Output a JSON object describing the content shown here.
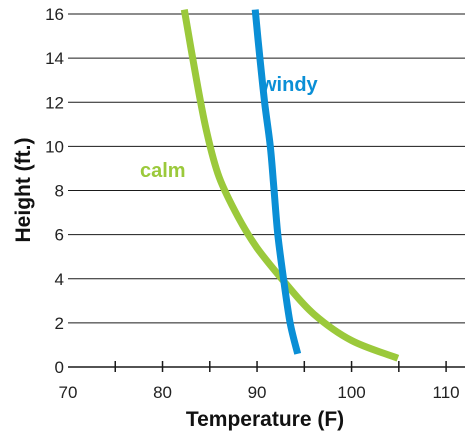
{
  "chart_data": {
    "type": "line",
    "xlabel": "Temperature (F)",
    "ylabel": "Height (ft.)",
    "xlim": [
      70,
      112
    ],
    "ylim": [
      0,
      16
    ],
    "x_ticks": [
      70,
      80,
      90,
      100,
      110
    ],
    "y_ticks": [
      0,
      2,
      4,
      6,
      8,
      10,
      12,
      14,
      16
    ],
    "grid": "horizontal",
    "series": [
      {
        "name": "windy",
        "color": "#0a8fd6",
        "points": [
          [
            94.3,
            0.6
          ],
          [
            93.5,
            2
          ],
          [
            92.8,
            4
          ],
          [
            92.2,
            6
          ],
          [
            91.8,
            8
          ],
          [
            91.4,
            10
          ],
          [
            90.8,
            12
          ],
          [
            90.3,
            14
          ],
          [
            89.8,
            16.2
          ]
        ]
      },
      {
        "name": "calm",
        "color": "#9bc93b",
        "points": [
          [
            104.9,
            0.4
          ],
          [
            100,
            1.2
          ],
          [
            96,
            2.4
          ],
          [
            93,
            3.8
          ],
          [
            90,
            5.4
          ],
          [
            88,
            6.8
          ],
          [
            86,
            8.6
          ],
          [
            84.7,
            10.6
          ],
          [
            83.6,
            13
          ],
          [
            82.3,
            16.2
          ]
        ]
      }
    ]
  }
}
